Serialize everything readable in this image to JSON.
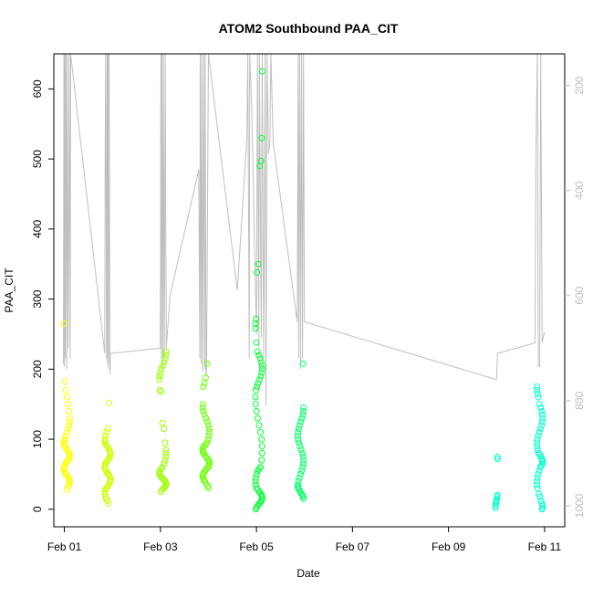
{
  "chart_data": {
    "type": "scatter",
    "title": "ATOM2 Southbound PAA_CIT",
    "xlabel": "Date",
    "ylabel": "PAA_CIT",
    "x_ticks": [
      {
        "label": "Feb 01",
        "day": 1
      },
      {
        "label": "Feb 03",
        "day": 3
      },
      {
        "label": "Feb 05",
        "day": 5
      },
      {
        "label": "Feb 07",
        "day": 7
      },
      {
        "label": "Feb 09",
        "day": 9
      },
      {
        "label": "Feb 11",
        "day": 11
      }
    ],
    "xlim": [
      0.78,
      11.42
    ],
    "ylim": [
      -25,
      650
    ],
    "y_ticks": [
      0,
      100,
      200,
      300,
      400,
      500,
      600
    ],
    "right_axis": {
      "label": "",
      "reversed": true,
      "lim": [
        1040,
        140
      ],
      "ticks": [
        200,
        400,
        600,
        800,
        1000
      ],
      "color": "#bfbfbf"
    },
    "colors": {
      "feb01": "#ffff00",
      "feb02": "#ccff00",
      "feb03": "#99ff00",
      "feb04": "#66ff00",
      "feb05": "#00ff33",
      "feb06": "#00ff66",
      "feb10": "#00ffcc",
      "feb11": "#00ffcc",
      "altitude": "#bfbfbf"
    },
    "series": [
      {
        "day": 1.05,
        "spread": 0.06,
        "color": "#ffff00",
        "values": [
          28,
          32,
          35,
          38,
          40,
          42,
          45,
          48,
          50,
          52,
          55,
          58,
          60,
          62,
          65,
          68,
          70,
          72,
          75,
          78,
          80,
          82,
          85,
          88,
          90,
          92,
          95,
          98,
          100,
          105,
          110,
          115,
          120,
          125,
          130,
          140,
          150,
          160,
          170,
          182,
          265
        ]
      },
      {
        "day": 1.9,
        "spread": 0.06,
        "color": "#ccff00",
        "values": [
          8,
          12,
          15,
          18,
          22,
          25,
          28,
          30,
          32,
          35,
          38,
          40,
          42,
          45,
          48,
          50,
          52,
          55,
          58,
          60,
          62,
          65,
          68,
          70,
          72,
          75,
          78,
          80,
          82,
          85,
          88,
          90,
          92,
          95,
          98,
          100,
          105,
          110,
          115,
          152
        ]
      },
      {
        "day": 3.05,
        "spread": 0.07,
        "color": "#99ff00",
        "values": [
          25,
          28,
          30,
          32,
          34,
          36,
          38,
          40,
          42,
          44,
          46,
          48,
          50,
          52,
          55,
          58,
          60,
          65,
          70,
          75,
          80,
          85,
          95,
          115,
          123,
          168,
          170,
          185,
          190,
          195,
          200,
          205,
          210,
          215,
          220,
          225
        ]
      },
      {
        "day": 3.95,
        "spread": 0.07,
        "color": "#66ff00",
        "values": [
          30,
          33,
          36,
          40,
          42,
          45,
          48,
          50,
          52,
          55,
          58,
          60,
          62,
          65,
          68,
          70,
          72,
          75,
          78,
          80,
          82,
          85,
          88,
          90,
          92,
          95,
          100,
          105,
          110,
          115,
          120,
          125,
          130,
          135,
          140,
          145,
          150,
          175,
          180,
          188,
          208
        ]
      },
      {
        "day": 5.05,
        "spread": 0.07,
        "color": "#00ff33",
        "values": [
          0,
          2,
          5,
          8,
          10,
          12,
          15,
          18,
          20,
          22,
          25,
          28,
          30,
          35,
          40,
          45,
          50,
          55,
          58,
          60,
          70,
          80,
          90,
          100,
          110,
          120,
          130,
          140,
          150,
          160,
          170,
          175,
          180,
          185,
          190,
          195,
          200,
          205,
          210,
          215,
          220,
          225,
          238,
          258,
          265,
          272,
          338,
          350,
          490,
          497,
          530,
          625
        ]
      },
      {
        "day": 5.92,
        "spread": 0.06,
        "color": "#00ff66",
        "values": [
          15,
          18,
          20,
          22,
          25,
          28,
          30,
          32,
          35,
          40,
          45,
          50,
          55,
          60,
          65,
          70,
          75,
          80,
          85,
          90,
          95,
          100,
          105,
          110,
          115,
          120,
          125,
          130,
          135,
          140,
          145,
          208
        ]
      },
      {
        "day": 10.0,
        "spread": 0.02,
        "color": "#00ffcc",
        "values": [
          2,
          5,
          8,
          10,
          12,
          15,
          18,
          20,
          72,
          75
        ]
      },
      {
        "day": 10.9,
        "spread": 0.06,
        "color": "#00ffcc",
        "values": [
          0,
          2,
          5,
          8,
          12,
          18,
          22,
          30,
          35,
          40,
          45,
          50,
          55,
          60,
          62,
          65,
          68,
          70,
          72,
          75,
          78,
          80,
          85,
          90,
          95,
          100,
          105,
          110,
          115,
          120,
          125,
          130,
          135,
          140,
          145,
          150,
          160,
          165,
          170,
          175
        ]
      }
    ],
    "altitude_trace": {
      "color": "#bfbfbf",
      "path": [
        [
          0.98,
          730
        ],
        [
          0.99,
          140
        ],
        [
          1.0,
          735
        ],
        [
          1.01,
          140
        ],
        [
          1.02,
          720
        ],
        [
          1.03,
          140
        ],
        [
          1.05,
          740
        ],
        [
          1.06,
          140
        ],
        [
          1.08,
          700
        ],
        [
          1.09,
          500
        ],
        [
          1.1,
          140
        ],
        [
          1.12,
          720
        ],
        [
          1.13,
          140
        ],
        [
          1.84,
          710
        ],
        [
          1.85,
          330
        ],
        [
          1.86,
          140
        ],
        [
          1.88,
          720
        ],
        [
          1.89,
          140
        ],
        [
          1.9,
          730
        ],
        [
          1.91,
          140
        ],
        [
          1.92,
          740
        ],
        [
          1.93,
          140
        ],
        [
          1.95,
          750
        ],
        [
          1.96,
          710
        ],
        [
          3.0,
          700
        ],
        [
          3.01,
          140
        ],
        [
          3.02,
          720
        ],
        [
          3.03,
          140
        ],
        [
          3.05,
          740
        ],
        [
          3.06,
          140
        ],
        [
          3.08,
          720
        ],
        [
          3.1,
          140
        ],
        [
          3.12,
          700
        ],
        [
          3.2,
          600
        ],
        [
          3.8,
          360
        ],
        [
          3.82,
          720
        ],
        [
          3.83,
          140
        ],
        [
          3.85,
          730
        ],
        [
          3.86,
          140
        ],
        [
          3.88,
          745
        ],
        [
          3.9,
          140
        ],
        [
          3.92,
          740
        ],
        [
          3.93,
          140
        ],
        [
          3.95,
          755
        ],
        [
          3.96,
          740
        ],
        [
          4.0,
          140
        ],
        [
          4.6,
          590
        ],
        [
          4.8,
          300
        ],
        [
          4.82,
          140
        ],
        [
          4.85,
          720
        ],
        [
          4.86,
          140
        ],
        [
          4.9,
          235
        ],
        [
          5.0,
          675
        ],
        [
          5.02,
          140
        ],
        [
          5.05,
          700
        ],
        [
          5.06,
          140
        ],
        [
          5.1,
          680
        ],
        [
          5.12,
          140
        ],
        [
          5.15,
          720
        ],
        [
          5.18,
          140
        ],
        [
          5.2,
          810
        ],
        [
          5.22,
          140
        ],
        [
          5.25,
          330
        ],
        [
          5.28,
          310
        ],
        [
          5.3,
          140
        ],
        [
          5.35,
          310
        ],
        [
          5.85,
          650
        ],
        [
          5.87,
          140
        ],
        [
          5.88,
          720
        ],
        [
          5.9,
          140
        ],
        [
          5.92,
          740
        ],
        [
          5.94,
          140
        ],
        [
          5.96,
          720
        ],
        [
          5.98,
          140
        ],
        [
          6.0,
          650
        ],
        [
          10.0,
          760
        ],
        [
          10.02,
          710
        ],
        [
          10.8,
          690
        ],
        [
          10.82,
          335
        ],
        [
          10.85,
          140
        ],
        [
          10.87,
          735
        ],
        [
          10.9,
          735
        ],
        [
          10.92,
          140
        ],
        [
          10.95,
          690
        ],
        [
          10.97,
          680
        ],
        [
          11.0,
          670
        ]
      ]
    }
  }
}
